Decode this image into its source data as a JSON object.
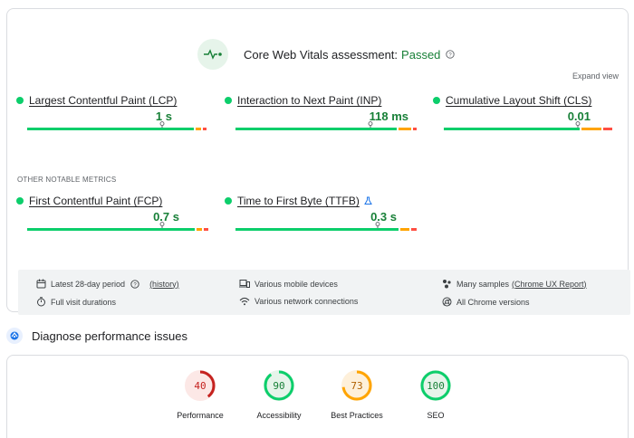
{
  "assessment": {
    "label": "Core Web Vitals assessment:",
    "status": "Passed"
  },
  "expand_label": "Expand view",
  "core_metrics": [
    {
      "name": "Largest Contentful Paint (LCP)",
      "value": "1 s",
      "rating": "good"
    },
    {
      "name": "Interaction to Next Paint (INP)",
      "value": "118 ms",
      "rating": "good"
    },
    {
      "name": "Cumulative Layout Shift (CLS)",
      "value": "0.01",
      "rating": "good"
    }
  ],
  "other_label": "OTHER NOTABLE METRICS",
  "other_metrics": [
    {
      "name": "First Contentful Paint (FCP)",
      "value": "0.7 s",
      "rating": "good"
    },
    {
      "name": "Time to First Byte (TTFB)",
      "value": "0.3 s",
      "rating": "good",
      "experimental": true
    }
  ],
  "info": {
    "period": "Latest 28-day period",
    "history_link": "(history)",
    "duration": "Full visit durations",
    "devices": "Various mobile devices",
    "network": "Various network connections",
    "samples": "Many samples",
    "report_link": "(Chrome UX Report)",
    "versions": "All Chrome versions"
  },
  "diagnose_title": "Diagnose performance issues",
  "scores": [
    {
      "label": "Performance",
      "value": "40",
      "fraction": 0.4,
      "color": "#c5221f",
      "bg": "#fce8e6",
      "track": "#f8d7d4"
    },
    {
      "label": "Accessibility",
      "value": "90",
      "fraction": 0.9,
      "color": "#0cce6b",
      "bg": "#e6f4ea",
      "track": "#d2eedb"
    },
    {
      "label": "Best Practices",
      "value": "73",
      "fraction": 0.73,
      "color": "#ffa400",
      "bg": "#fef0da",
      "track": "#fde3bf"
    },
    {
      "label": "SEO",
      "value": "100",
      "fraction": 1.0,
      "color": "#0cce6b",
      "bg": "#e6f4ea",
      "track": "#d2eedb"
    }
  ],
  "colors": {
    "good": "#0cce6b",
    "needs_improvement": "#ffa400",
    "poor": "#ff4e42",
    "passed_text": "#188038"
  }
}
